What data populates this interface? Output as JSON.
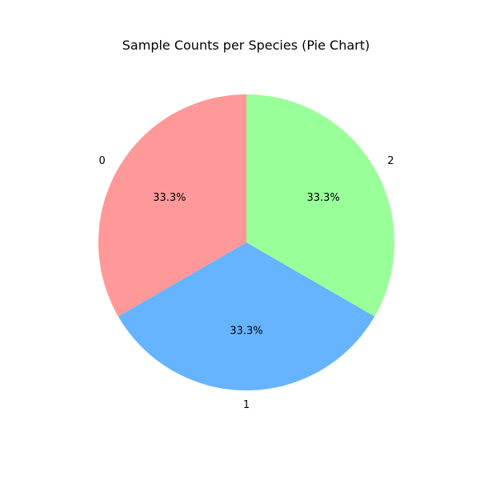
{
  "chart_data": {
    "type": "pie",
    "title": "Sample Counts per Species (Pie Chart)",
    "categories": [
      "0",
      "1",
      "2"
    ],
    "values": [
      1,
      1,
      1
    ],
    "percent_labels": [
      "33.3%",
      "33.3%",
      "33.3%"
    ],
    "colors": [
      "#ff9999",
      "#66b3ff",
      "#99ff99"
    ],
    "start_angle_deg": 90,
    "direction": "counterclockwise"
  }
}
